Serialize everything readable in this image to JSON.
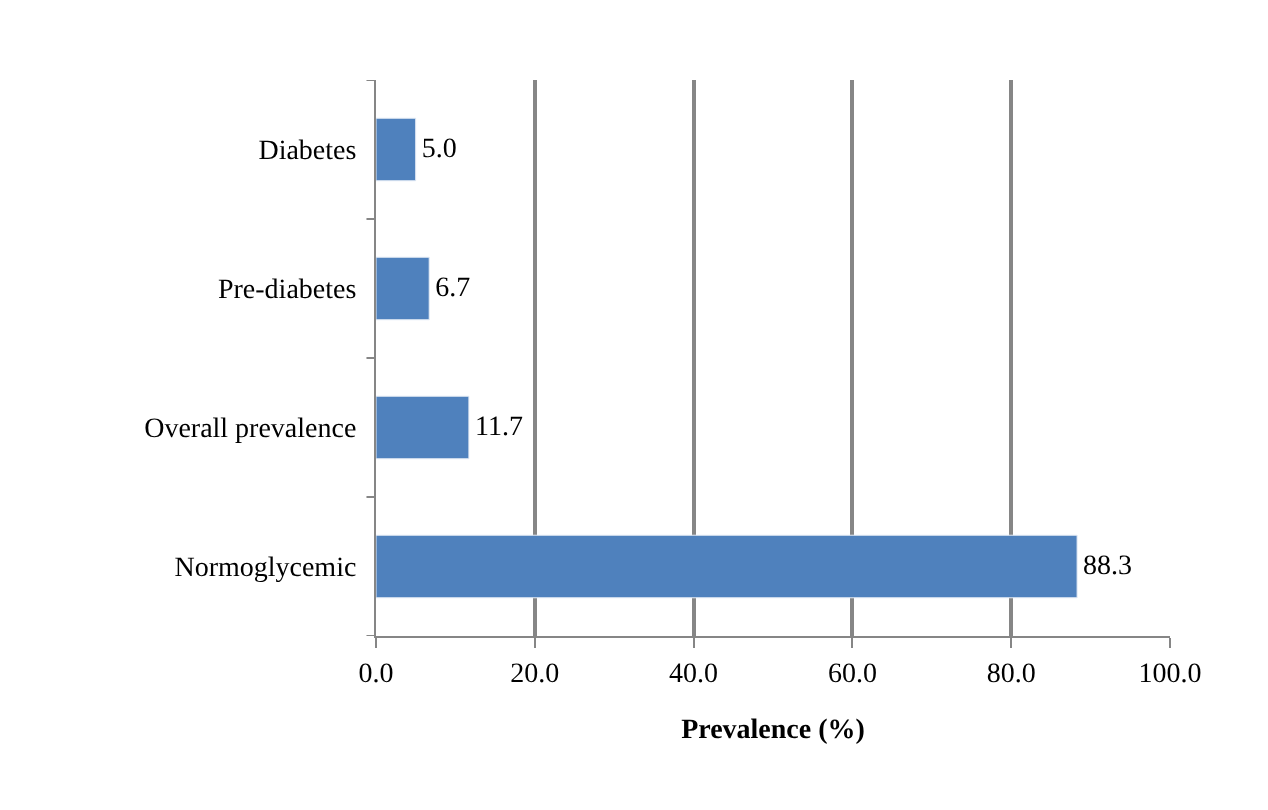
{
  "chart_data": {
    "type": "bar",
    "orientation": "horizontal",
    "xlabel": "Prevalence (%)",
    "categories": [
      "Diabetes",
      "Pre-diabetes",
      "Overall prevalence",
      "Normoglycemic"
    ],
    "values": [
      5.0,
      6.7,
      11.7,
      88.3
    ],
    "color": "#4f81bd",
    "value_labels": [
      "5.0",
      "6.7",
      "11.7",
      "88.3"
    ],
    "xlim": [
      0,
      100
    ],
    "xticks": [
      {
        "value": 0,
        "label": "0.0"
      },
      {
        "value": 20,
        "label": "20.0"
      },
      {
        "value": 40,
        "label": "40.0"
      },
      {
        "value": 60,
        "label": "60.0"
      },
      {
        "value": 80,
        "label": "80.0"
      },
      {
        "value": 100,
        "label": "100.0"
      }
    ],
    "grid": "x"
  }
}
